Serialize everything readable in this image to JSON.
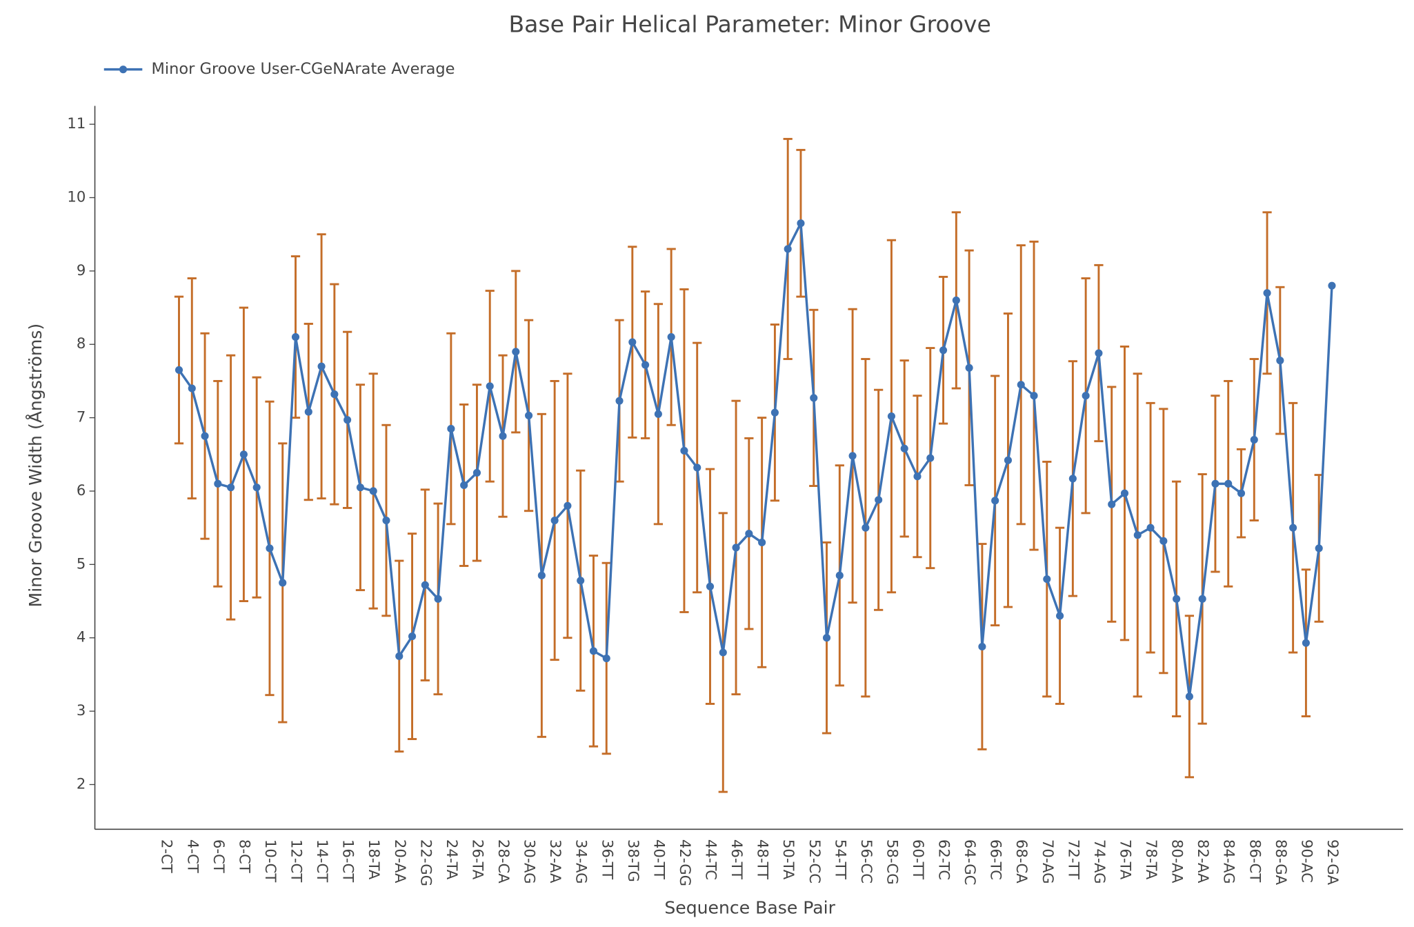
{
  "chart_data": {
    "type": "line",
    "title": "Base Pair Helical Parameter: Minor Groove",
    "x_label": "Sequence Base Pair",
    "y_label": "Minor Groove Width (Ångströms)",
    "categories": [
      "2-CT",
      null,
      "4-CT",
      null,
      "6-CT",
      null,
      "8-CT",
      null,
      "10-CT",
      null,
      "12-CT",
      null,
      "14-CT",
      null,
      "16-CT",
      null,
      "18-TA",
      null,
      "20-AA",
      null,
      "22-GG",
      null,
      "24-TA",
      null,
      "26-TA",
      null,
      "28-CA",
      null,
      "30-AG",
      null,
      "32-AA",
      null,
      "34-AG",
      null,
      "36-TT",
      null,
      "38-TG",
      null,
      "40-TT",
      null,
      "42-GG",
      null,
      "44-TC",
      null,
      "46-TT",
      null,
      "48-TT",
      null,
      "50-TA",
      null,
      "52-CC",
      null,
      "54-TT",
      null,
      "56-CC",
      null,
      "58-CG",
      null,
      "60-TT",
      null,
      "62-TC",
      null,
      "64-GC",
      null,
      "66-TC",
      null,
      "68-CA",
      null,
      "70-AG",
      null,
      "72-TT",
      null,
      "74-AG",
      null,
      "76-TA",
      null,
      "78-TA",
      null,
      "80-AA",
      null,
      "82-AA",
      null,
      "84-AG",
      null,
      "86-CT",
      null,
      "88-GA",
      null,
      "90-AC",
      null,
      "92-GA"
    ],
    "series": [
      {
        "name": "Minor Groove User-CGeNArate Average",
        "color": "#3d72b4",
        "error_color": "#c46d28",
        "values": [
          null,
          7.65,
          7.4,
          6.75,
          6.1,
          6.05,
          6.5,
          6.05,
          5.22,
          4.75,
          8.1,
          7.08,
          7.7,
          7.32,
          6.97,
          6.05,
          6.0,
          5.6,
          3.75,
          4.02,
          4.72,
          4.53,
          6.85,
          6.08,
          6.25,
          7.43,
          6.75,
          7.9,
          7.03,
          4.85,
          5.6,
          5.8,
          4.78,
          3.82,
          3.72,
          7.23,
          8.03,
          7.72,
          7.05,
          8.1,
          6.55,
          6.32,
          4.7,
          3.8,
          5.23,
          5.42,
          5.3,
          7.07,
          9.3,
          9.65,
          7.27,
          4.0,
          4.85,
          6.48,
          5.5,
          5.88,
          7.02,
          6.58,
          6.2,
          6.45,
          7.92,
          8.6,
          7.68,
          3.88,
          5.87,
          6.42,
          7.45,
          7.3,
          4.8,
          4.3,
          6.17,
          7.3,
          7.88,
          5.82,
          5.97,
          5.4,
          5.5,
          5.32,
          4.53,
          3.2,
          4.53,
          6.1,
          6.1,
          5.97,
          6.7,
          8.7,
          7.78,
          5.5,
          3.93,
          5.22,
          8.8
        ],
        "errors": [
          null,
          1.0,
          1.5,
          1.4,
          1.4,
          1.8,
          2.0,
          1.5,
          2.0,
          1.9,
          1.1,
          1.2,
          1.8,
          1.5,
          1.2,
          1.4,
          1.6,
          1.3,
          1.3,
          1.4,
          1.3,
          1.3,
          1.3,
          1.1,
          1.2,
          1.3,
          1.1,
          1.1,
          1.3,
          2.2,
          1.9,
          1.8,
          1.5,
          1.3,
          1.3,
          1.1,
          1.3,
          1.0,
          1.5,
          1.2,
          2.2,
          1.7,
          1.6,
          1.9,
          2.0,
          1.3,
          1.7,
          1.2,
          1.5,
          1.0,
          1.2,
          1.3,
          1.5,
          2.0,
          2.3,
          1.5,
          2.4,
          1.2,
          1.1,
          1.5,
          1.0,
          1.2,
          1.6,
          1.4,
          1.7,
          2.0,
          1.9,
          2.1,
          1.6,
          1.2,
          1.6,
          1.6,
          1.2,
          1.6,
          2.0,
          2.2,
          1.7,
          1.8,
          1.6,
          1.1,
          1.7,
          1.2,
          1.4,
          0.6,
          1.1,
          1.1,
          1.0,
          1.7,
          1.0,
          1.0,
          null
        ]
      }
    ],
    "ylim": [
      1.39,
      11.25
    ],
    "yticks": [
      2,
      3,
      4,
      5,
      6,
      7,
      8,
      9,
      10,
      11
    ],
    "legend": "top-left"
  }
}
